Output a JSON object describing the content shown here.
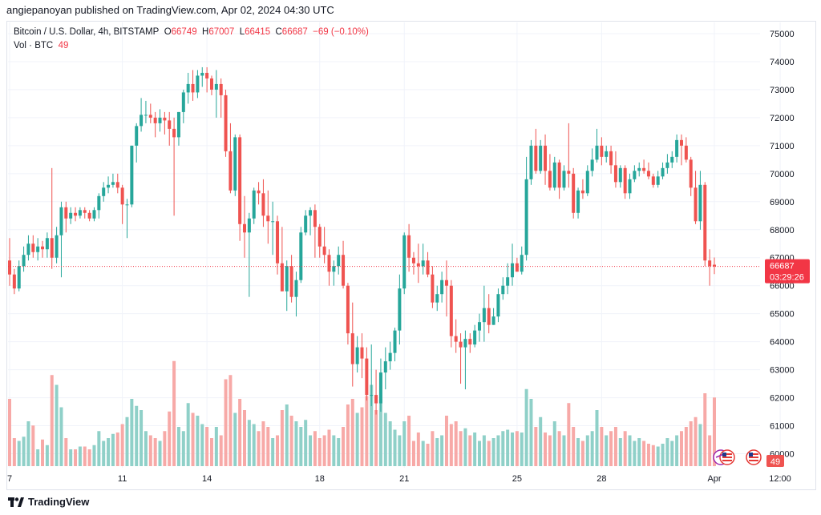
{
  "header": {
    "published": "angiepanoyan published on TradingView.com, Apr 02, 2024 04:30 UTC"
  },
  "legend": {
    "symbol": "Bitcoin / U.S. Dollar, 4h, BITSTAMP",
    "o_label": "O",
    "o": "66749",
    "h_label": "H",
    "h": "67007",
    "l_label": "L",
    "l": "66415",
    "c_label": "C",
    "c": "66687",
    "change": "−69 (−0.10%)",
    "vol_label": "Vol · BTC",
    "vol_value": "49"
  },
  "price_label": {
    "price": "66687",
    "countdown": "03:29:26"
  },
  "volume_label": "49",
  "footer": {
    "brand": "TradingView"
  },
  "colors": {
    "up": "#26a69a",
    "down": "#ef5350",
    "up_vol": "#8fd0c8",
    "down_vol": "#f7a9a7",
    "grid": "#f0f3fa",
    "last_line": "#f23645"
  },
  "chart_data": {
    "type": "candlestick",
    "symbol": "BTCUSD",
    "timeframe": "4h",
    "ylim": [
      59500,
      75400
    ],
    "y_ticks": [
      "75000",
      "74000",
      "73000",
      "72000",
      "71000",
      "70000",
      "69000",
      "68000",
      "67000",
      "66000",
      "65000",
      "64000",
      "63000",
      "62000",
      "61000",
      "60000"
    ],
    "x_ticks": [
      {
        "label": "7",
        "index": 0
      },
      {
        "label": "11",
        "index": 24
      },
      {
        "label": "14",
        "index": 42
      },
      {
        "label": "18",
        "index": 66
      },
      {
        "label": "21",
        "index": 84
      },
      {
        "label": "25",
        "index": 108
      },
      {
        "label": "28",
        "index": 126
      },
      {
        "label": "Apr",
        "index": 150
      },
      {
        "label": "12:00",
        "index": 164
      }
    ],
    "last_price": 66687,
    "last_volume": 49,
    "candles_ohlcv": [
      [
        66900,
        67700,
        66000,
        66400,
        48
      ],
      [
        66400,
        66600,
        65700,
        65900,
        20
      ],
      [
        65900,
        66900,
        65800,
        66700,
        18
      ],
      [
        66700,
        67400,
        66500,
        67100,
        21
      ],
      [
        67100,
        67800,
        66900,
        67500,
        32
      ],
      [
        67500,
        67800,
        67000,
        67200,
        29
      ],
      [
        67200,
        67700,
        66900,
        67400,
        12
      ],
      [
        67400,
        67600,
        67000,
        67300,
        19
      ],
      [
        67300,
        67900,
        67000,
        67700,
        15
      ],
      [
        67700,
        70200,
        66600,
        67000,
        65
      ],
      [
        67000,
        68100,
        66800,
        67800,
        58
      ],
      [
        67800,
        69000,
        66300,
        68800,
        42
      ],
      [
        68800,
        69000,
        67900,
        68400,
        20
      ],
      [
        68400,
        68800,
        68200,
        68600,
        12
      ],
      [
        68600,
        68800,
        68300,
        68500,
        12
      ],
      [
        68500,
        68800,
        68400,
        68700,
        14
      ],
      [
        68700,
        68800,
        68400,
        68600,
        14
      ],
      [
        68600,
        68700,
        68300,
        68400,
        12
      ],
      [
        68400,
        68800,
        68300,
        68700,
        15
      ],
      [
        68700,
        69300,
        68400,
        69200,
        25
      ],
      [
        69200,
        69700,
        69000,
        69500,
        18
      ],
      [
        69500,
        69900,
        69300,
        69600,
        20
      ],
      [
        69600,
        70000,
        69500,
        69700,
        23
      ],
      [
        69700,
        70000,
        69300,
        69500,
        24
      ],
      [
        69500,
        69600,
        68200,
        68900,
        30
      ],
      [
        68900,
        69100,
        67700,
        68900,
        35
      ],
      [
        68900,
        71000,
        68800,
        71000,
        48
      ],
      [
        71000,
        71800,
        70400,
        71700,
        43
      ],
      [
        71700,
        72700,
        71500,
        72100,
        40
      ],
      [
        72100,
        72600,
        71800,
        72100,
        25
      ],
      [
        72100,
        72500,
        71800,
        72000,
        22
      ],
      [
        72000,
        72200,
        71300,
        71800,
        20
      ],
      [
        71800,
        72300,
        71500,
        72000,
        18
      ],
      [
        72000,
        72200,
        71400,
        71900,
        25
      ],
      [
        71900,
        72200,
        71000,
        71600,
        39
      ],
      [
        71600,
        72000,
        68500,
        71300,
        75
      ],
      [
        71300,
        72200,
        71000,
        72200,
        28
      ],
      [
        72200,
        73000,
        71800,
        72900,
        25
      ],
      [
        72900,
        73600,
        72500,
        73200,
        45
      ],
      [
        73200,
        73700,
        72600,
        72900,
        38
      ],
      [
        72900,
        73700,
        72700,
        73500,
        36
      ],
      [
        73500,
        73800,
        73100,
        73600,
        30
      ],
      [
        73600,
        73800,
        72900,
        73400,
        28
      ],
      [
        73400,
        73500,
        72800,
        73000,
        20
      ],
      [
        73000,
        73700,
        72000,
        73200,
        28
      ],
      [
        73200,
        73400,
        72000,
        72800,
        22
      ],
      [
        72800,
        73000,
        70600,
        70800,
        62
      ],
      [
        70800,
        71800,
        69300,
        69400,
        65
      ],
      [
        69400,
        71400,
        69200,
        71300,
        38
      ],
      [
        71300,
        71400,
        67600,
        68200,
        48
      ],
      [
        68200,
        69200,
        67000,
        67900,
        40
      ],
      [
        67900,
        68600,
        65600,
        68400,
        33
      ],
      [
        68400,
        69500,
        68200,
        69400,
        30
      ],
      [
        69400,
        69700,
        68900,
        69300,
        25
      ],
      [
        69300,
        69800,
        68100,
        68500,
        32
      ],
      [
        68500,
        69400,
        67500,
        68300,
        28
      ],
      [
        68300,
        69000,
        67100,
        68300,
        20
      ],
      [
        68300,
        68500,
        66400,
        66800,
        22
      ],
      [
        66800,
        68100,
        65800,
        65800,
        40
      ],
      [
        65800,
        66900,
        65100,
        66700,
        44
      ],
      [
        66700,
        67100,
        65400,
        65600,
        36
      ],
      [
        65600,
        66500,
        64900,
        66200,
        32
      ],
      [
        66200,
        68100,
        66100,
        67900,
        28
      ],
      [
        67900,
        68700,
        67800,
        68500,
        33
      ],
      [
        68500,
        68800,
        67800,
        68700,
        22
      ],
      [
        68700,
        68900,
        67000,
        68100,
        25
      ],
      [
        68100,
        68200,
        67000,
        67400,
        20
      ],
      [
        67400,
        68100,
        66800,
        67100,
        22
      ],
      [
        67100,
        67300,
        66000,
        66500,
        26
      ],
      [
        66500,
        66900,
        66000,
        66700,
        22
      ],
      [
        66700,
        67400,
        66400,
        67100,
        20
      ],
      [
        67100,
        67600,
        65900,
        66000,
        28
      ],
      [
        66000,
        66100,
        63900,
        64300,
        44
      ],
      [
        64300,
        65400,
        62400,
        63200,
        48
      ],
      [
        63200,
        64200,
        62900,
        63800,
        38
      ],
      [
        63800,
        64300,
        62700,
        63400,
        42
      ],
      [
        63400,
        63800,
        61900,
        62100,
        50
      ],
      [
        62100,
        63900,
        61700,
        62100,
        58
      ],
      [
        62100,
        63000,
        61400,
        61800,
        40
      ],
      [
        61800,
        63400,
        61500,
        62900,
        48
      ],
      [
        62900,
        63800,
        62300,
        63300,
        38
      ],
      [
        63300,
        64000,
        63000,
        63600,
        32
      ],
      [
        63600,
        64500,
        63300,
        64400,
        26
      ],
      [
        64400,
        66400,
        63900,
        65900,
        22
      ],
      [
        65900,
        67900,
        65700,
        67800,
        32
      ],
      [
        67800,
        68200,
        66500,
        67000,
        36
      ],
      [
        67000,
        67200,
        66400,
        66800,
        18
      ],
      [
        66800,
        67500,
        66100,
        66700,
        24
      ],
      [
        66700,
        67500,
        66400,
        66900,
        18
      ],
      [
        66900,
        67200,
        66300,
        66400,
        16
      ],
      [
        66400,
        66700,
        65200,
        65400,
        25
      ],
      [
        65400,
        66000,
        65100,
        65700,
        20
      ],
      [
        65700,
        66500,
        65400,
        66200,
        22
      ],
      [
        66200,
        66900,
        64900,
        66000,
        36
      ],
      [
        66000,
        66200,
        63800,
        64200,
        30
      ],
      [
        64200,
        64800,
        63600,
        64000,
        32
      ],
      [
        64000,
        64300,
        62500,
        63800,
        25
      ],
      [
        63800,
        64400,
        62300,
        64100,
        27
      ],
      [
        64100,
        64300,
        63600,
        63900,
        22
      ],
      [
        63900,
        64600,
        63800,
        64400,
        24
      ],
      [
        64400,
        65000,
        64000,
        64700,
        18
      ],
      [
        64700,
        66000,
        64000,
        65200,
        22
      ],
      [
        65200,
        65700,
        64300,
        64600,
        18
      ],
      [
        64600,
        65200,
        64600,
        64900,
        20
      ],
      [
        64900,
        65900,
        64700,
        65700,
        22
      ],
      [
        65700,
        66300,
        65500,
        66000,
        25
      ],
      [
        66000,
        66800,
        65700,
        66300,
        26
      ],
      [
        66300,
        67500,
        66000,
        66800,
        24
      ],
      [
        66800,
        67000,
        66500,
        66500,
        25
      ],
      [
        66500,
        67400,
        66400,
        67100,
        24
      ],
      [
        67100,
        70600,
        66900,
        69800,
        55
      ],
      [
        69800,
        71200,
        69600,
        71000,
        48
      ],
      [
        71000,
        71600,
        70000,
        70100,
        28
      ],
      [
        70100,
        71200,
        70000,
        71000,
        35
      ],
      [
        71000,
        71400,
        69600,
        70100,
        24
      ],
      [
        70100,
        70700,
        69400,
        69500,
        22
      ],
      [
        69500,
        70600,
        69400,
        70400,
        32
      ],
      [
        70400,
        70500,
        69100,
        69500,
        25
      ],
      [
        69500,
        70300,
        69400,
        70100,
        22
      ],
      [
        70100,
        71800,
        69500,
        70000,
        45
      ],
      [
        70000,
        70200,
        68400,
        68600,
        28
      ],
      [
        68600,
        69500,
        68400,
        69400,
        20
      ],
      [
        69400,
        69800,
        69100,
        69300,
        18
      ],
      [
        69300,
        70300,
        69200,
        70100,
        22
      ],
      [
        70100,
        70900,
        69900,
        70500,
        25
      ],
      [
        70500,
        71600,
        70400,
        71000,
        40
      ],
      [
        71000,
        71300,
        70300,
        70600,
        28
      ],
      [
        70600,
        71000,
        70400,
        70800,
        22
      ],
      [
        70800,
        71000,
        70000,
        70300,
        25
      ],
      [
        70300,
        70800,
        69500,
        69700,
        28
      ],
      [
        69700,
        70300,
        69500,
        70200,
        20
      ],
      [
        70200,
        70300,
        69100,
        69300,
        25
      ],
      [
        69300,
        70000,
        69100,
        69800,
        22
      ],
      [
        69800,
        70300,
        69700,
        70100,
        18
      ],
      [
        70100,
        70400,
        69900,
        70200,
        20
      ],
      [
        70200,
        70500,
        70000,
        70100,
        18
      ],
      [
        70100,
        70400,
        69800,
        69900,
        16
      ],
      [
        69900,
        70000,
        69500,
        69600,
        15
      ],
      [
        69600,
        70100,
        69500,
        69900,
        14
      ],
      [
        69900,
        70400,
        69800,
        70200,
        16
      ],
      [
        70200,
        70700,
        70000,
        70400,
        20
      ],
      [
        70400,
        70800,
        70200,
        70600,
        18
      ],
      [
        70600,
        71400,
        70400,
        71200,
        22
      ],
      [
        71200,
        71400,
        70300,
        71000,
        25
      ],
      [
        71000,
        71300,
        70400,
        70500,
        28
      ],
      [
        70500,
        70600,
        69200,
        69500,
        32
      ],
      [
        69500,
        70100,
        68200,
        68300,
        35
      ],
      [
        68300,
        70100,
        68000,
        69600,
        30
      ],
      [
        69600,
        69700,
        66700,
        66900,
        52
      ],
      [
        66900,
        67300,
        66000,
        66700,
        22
      ],
      [
        66749,
        67007,
        66415,
        66687,
        49
      ]
    ]
  }
}
